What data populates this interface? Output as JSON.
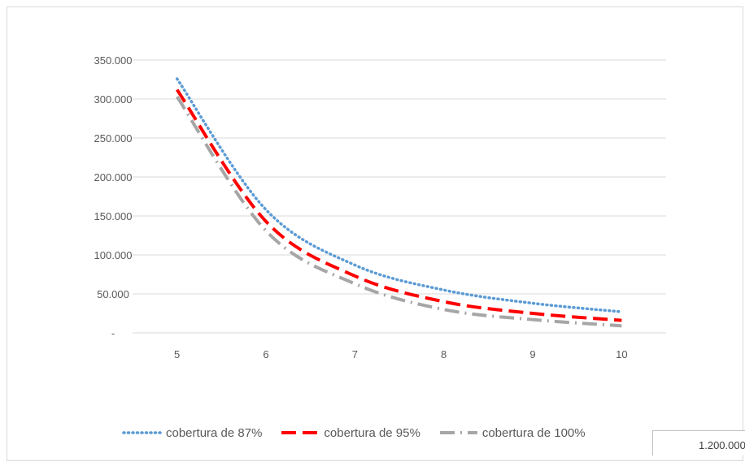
{
  "chart_data": {
    "type": "line",
    "title": "",
    "xlabel": "",
    "ylabel": "",
    "x": [
      "5",
      "6",
      "7",
      "8",
      "9",
      "10"
    ],
    "ylim": [
      0,
      350000
    ],
    "yticks": [
      0,
      50000,
      100000,
      150000,
      200000,
      250000,
      300000,
      350000
    ],
    "ytick_labels": [
      "-",
      "50.000",
      "100.000",
      "150.000",
      "200.000",
      "250.000",
      "300.000",
      "350.000"
    ],
    "grid": true,
    "legend_position": "bottom",
    "series": [
      {
        "name": "cobertura de 87%",
        "color": "#5b9bd5",
        "style": "dotted",
        "values": [
          326000,
          158000,
          87000,
          55000,
          38000,
          27000
        ]
      },
      {
        "name": "cobertura de 95%",
        "color": "#ff0000",
        "style": "dashed",
        "values": [
          312000,
          143000,
          73000,
          40000,
          25000,
          16000
        ]
      },
      {
        "name": "cobertura de 100%",
        "color": "#a6a6a6",
        "style": "dashdot",
        "values": [
          303000,
          131000,
          63000,
          30000,
          17000,
          9000
        ]
      }
    ]
  },
  "overlap_label": "1.200.000"
}
